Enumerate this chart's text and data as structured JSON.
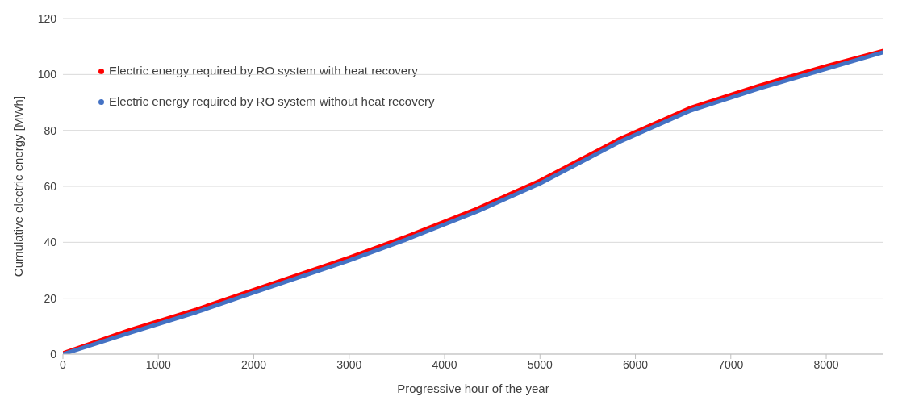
{
  "chart_data": {
    "type": "line",
    "xlabel": "Progressive hour of the year",
    "ylabel": "Cumulative electric energy [MWh]",
    "xlim": [
      0,
      8600
    ],
    "xticks": [
      0,
      1000,
      2000,
      3000,
      4000,
      5000,
      6000,
      7000,
      8000
    ],
    "ylim": [
      0,
      120
    ],
    "yticks": [
      0,
      20,
      40,
      60,
      80,
      100,
      120
    ],
    "grid": "y",
    "legend": "top left",
    "series": [
      {
        "name": "Electric energy required by RO system with heat recovery",
        "color": "#ff0000",
        "x": [
          0,
          700,
          1400,
          2000,
          3000,
          3600,
          4340,
          5000,
          5840,
          6570,
          7300,
          8000,
          8600
        ],
        "values": [
          0.3,
          8.6,
          16,
          23,
          34.5,
          42,
          52,
          62,
          77,
          88,
          96,
          103,
          108.5
        ]
      },
      {
        "name": "Electric energy required by RO system without heat recovery",
        "color": "#4472c4",
        "x": [
          0,
          700,
          1400,
          2000,
          3000,
          3600,
          4340,
          5000,
          5840,
          6570,
          7300,
          8000,
          8600
        ],
        "values": [
          0,
          7.6,
          15,
          22,
          33.5,
          41,
          51,
          61,
          76,
          87,
          95,
          102,
          108
        ]
      }
    ]
  }
}
